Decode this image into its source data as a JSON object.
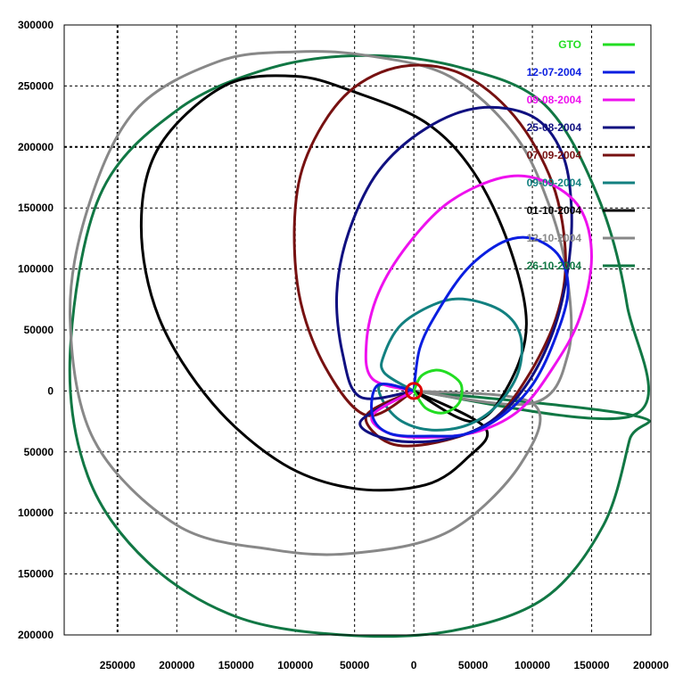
{
  "chart_data": {
    "type": "line",
    "title": "",
    "xlabel": "",
    "ylabel": "",
    "xlim": [
      -295000,
      200000
    ],
    "ylim": [
      -200000,
      300000
    ],
    "grid": true,
    "legend_position": "top-right",
    "x_ticks": [
      -250000,
      -200000,
      -150000,
      -100000,
      -50000,
      0,
      50000,
      100000,
      150000,
      200000
    ],
    "x_tick_labels": [
      "250000",
      "200000",
      "150000",
      "100000",
      "50000",
      "0",
      "50000",
      "100000",
      "150000",
      "200000"
    ],
    "y_ticks": [
      300000,
      250000,
      200000,
      150000,
      100000,
      50000,
      0,
      -50000,
      -100000,
      -150000,
      -200000
    ],
    "y_tick_labels": [
      "300000",
      "250000",
      "200000",
      "150000",
      "100000",
      "50000",
      "0",
      "50000",
      "100000",
      "150000",
      "200000"
    ],
    "earth": {
      "x": 0,
      "y": 0,
      "radius": 6400,
      "color": "#dd0000"
    },
    "series": [
      {
        "name": "GTO",
        "color": "#22dd22",
        "points": [
          [
            0,
            0
          ],
          [
            6000,
            12000
          ],
          [
            18000,
            17000
          ],
          [
            30000,
            14000
          ],
          [
            40000,
            5000
          ],
          [
            38000,
            -10000
          ],
          [
            25000,
            -18000
          ],
          [
            10000,
            -14000
          ],
          [
            0,
            0
          ]
        ]
      },
      {
        "name": "12-07-2004",
        "color": "#0a1ee0",
        "points": [
          [
            0,
            0
          ],
          [
            5000,
            35000
          ],
          [
            20000,
            65000
          ],
          [
            45000,
            100000
          ],
          [
            75000,
            122000
          ],
          [
            100000,
            125000
          ],
          [
            123000,
            110000
          ],
          [
            130000,
            80000
          ],
          [
            118000,
            40000
          ],
          [
            100000,
            5000
          ],
          [
            75000,
            -20000
          ],
          [
            45000,
            -35000
          ],
          [
            15000,
            -37000
          ],
          [
            -20000,
            -35000
          ],
          [
            -35000,
            -20000
          ],
          [
            -30000,
            5000
          ],
          [
            0,
            0
          ]
        ]
      },
      {
        "name": "09-08-2004",
        "color": "#ee11ee",
        "points": [
          [
            0,
            0
          ],
          [
            -35000,
            10000
          ],
          [
            -40000,
            40000
          ],
          [
            -30000,
            80000
          ],
          [
            -5000,
            120000
          ],
          [
            30000,
            155000
          ],
          [
            75000,
            175000
          ],
          [
            110000,
            172000
          ],
          [
            140000,
            150000
          ],
          [
            150000,
            110000
          ],
          [
            140000,
            60000
          ],
          [
            118000,
            20000
          ],
          [
            90000,
            -15000
          ],
          [
            55000,
            -33000
          ],
          [
            15000,
            -38000
          ],
          [
            -20000,
            -35000
          ],
          [
            -35000,
            -20000
          ],
          [
            0,
            0
          ]
        ]
      },
      {
        "name": "25-08-2004",
        "color": "#101080",
        "points": [
          [
            0,
            0
          ],
          [
            -45000,
            -5000
          ],
          [
            -60000,
            30000
          ],
          [
            -65000,
            80000
          ],
          [
            -55000,
            130000
          ],
          [
            -30000,
            180000
          ],
          [
            10000,
            215000
          ],
          [
            55000,
            232000
          ],
          [
            100000,
            225000
          ],
          [
            125000,
            195000
          ],
          [
            133000,
            150000
          ],
          [
            130000,
            100000
          ],
          [
            118000,
            50000
          ],
          [
            95000,
            5000
          ],
          [
            65000,
            -25000
          ],
          [
            25000,
            -40000
          ],
          [
            -20000,
            -40000
          ],
          [
            -45000,
            -25000
          ],
          [
            0,
            0
          ]
        ]
      },
      {
        "name": "07-09-2004",
        "color": "#771111",
        "points": [
          [
            0,
            0
          ],
          [
            -40000,
            -20000
          ],
          [
            -75000,
            20000
          ],
          [
            -97000,
            80000
          ],
          [
            -100000,
            150000
          ],
          [
            -87000,
            200000
          ],
          [
            -55000,
            245000
          ],
          [
            -10000,
            266000
          ],
          [
            40000,
            260000
          ],
          [
            85000,
            225000
          ],
          [
            117000,
            170000
          ],
          [
            128000,
            110000
          ],
          [
            120000,
            60000
          ],
          [
            95000,
            10000
          ],
          [
            65000,
            -25000
          ],
          [
            20000,
            -42000
          ],
          [
            -20000,
            -43000
          ],
          [
            -40000,
            -20000
          ],
          [
            0,
            0
          ]
        ]
      },
      {
        "name": "09-09-2004",
        "color": "#128080",
        "points": [
          [
            0,
            0
          ],
          [
            -25000,
            15000
          ],
          [
            -25000,
            30000
          ],
          [
            -10000,
            55000
          ],
          [
            20000,
            72000
          ],
          [
            45000,
            75000
          ],
          [
            75000,
            65000
          ],
          [
            90000,
            45000
          ],
          [
            88000,
            15000
          ],
          [
            70000,
            -12000
          ],
          [
            45000,
            -28000
          ],
          [
            15000,
            -32000
          ],
          [
            -10000,
            -25000
          ],
          [
            -25000,
            -10000
          ],
          [
            -28000,
            5000
          ],
          [
            0,
            0
          ]
        ]
      },
      {
        "name": "01-10-2004",
        "color": "#000000",
        "points": [
          [
            0,
            0
          ],
          [
            50000,
            -25000
          ],
          [
            80000,
            5000
          ],
          [
            95000,
            55000
          ],
          [
            80000,
            120000
          ],
          [
            50000,
            180000
          ],
          [
            10000,
            220000
          ],
          [
            -50000,
            245000
          ],
          [
            -100000,
            258000
          ],
          [
            -160000,
            250000
          ],
          [
            -215000,
            200000
          ],
          [
            -230000,
            135000
          ],
          [
            -215000,
            60000
          ],
          [
            -170000,
            -10000
          ],
          [
            -110000,
            -60000
          ],
          [
            -50000,
            -80000
          ],
          [
            10000,
            -77000
          ],
          [
            45000,
            -55000
          ],
          [
            60000,
            -30000
          ],
          [
            0,
            0
          ]
        ]
      },
      {
        "name": "12-10-2004",
        "color": "#888888",
        "points": [
          [
            0,
            0
          ],
          [
            100000,
            -10000
          ],
          [
            130000,
            30000
          ],
          [
            130000,
            90000
          ],
          [
            115000,
            150000
          ],
          [
            85000,
            210000
          ],
          [
            30000,
            258000
          ],
          [
            -40000,
            275000
          ],
          [
            -100000,
            278000
          ],
          [
            -165000,
            270000
          ],
          [
            -235000,
            230000
          ],
          [
            -275000,
            150000
          ],
          [
            -290000,
            60000
          ],
          [
            -270000,
            -40000
          ],
          [
            -200000,
            -110000
          ],
          [
            -120000,
            -130000
          ],
          [
            -50000,
            -133000
          ],
          [
            30000,
            -115000
          ],
          [
            90000,
            -60000
          ],
          [
            100000,
            -10000
          ],
          [
            0,
            0
          ]
        ]
      },
      {
        "name": "26-10-2004",
        "color": "#117744",
        "points": [
          [
            0,
            0
          ],
          [
            185000,
            -20000
          ],
          [
            180000,
            70000
          ],
          [
            155000,
            160000
          ],
          [
            110000,
            235000
          ],
          [
            40000,
            265000
          ],
          [
            -40000,
            275000
          ],
          [
            -120000,
            265000
          ],
          [
            -200000,
            230000
          ],
          [
            -265000,
            160000
          ],
          [
            -290000,
            30000
          ],
          [
            -275000,
            -70000
          ],
          [
            -225000,
            -140000
          ],
          [
            -150000,
            -185000
          ],
          [
            -60000,
            -200000
          ],
          [
            30000,
            -197000
          ],
          [
            110000,
            -170000
          ],
          [
            160000,
            -110000
          ],
          [
            182000,
            -40000
          ],
          [
            185000,
            -20000
          ],
          [
            0,
            0
          ]
        ]
      }
    ]
  }
}
